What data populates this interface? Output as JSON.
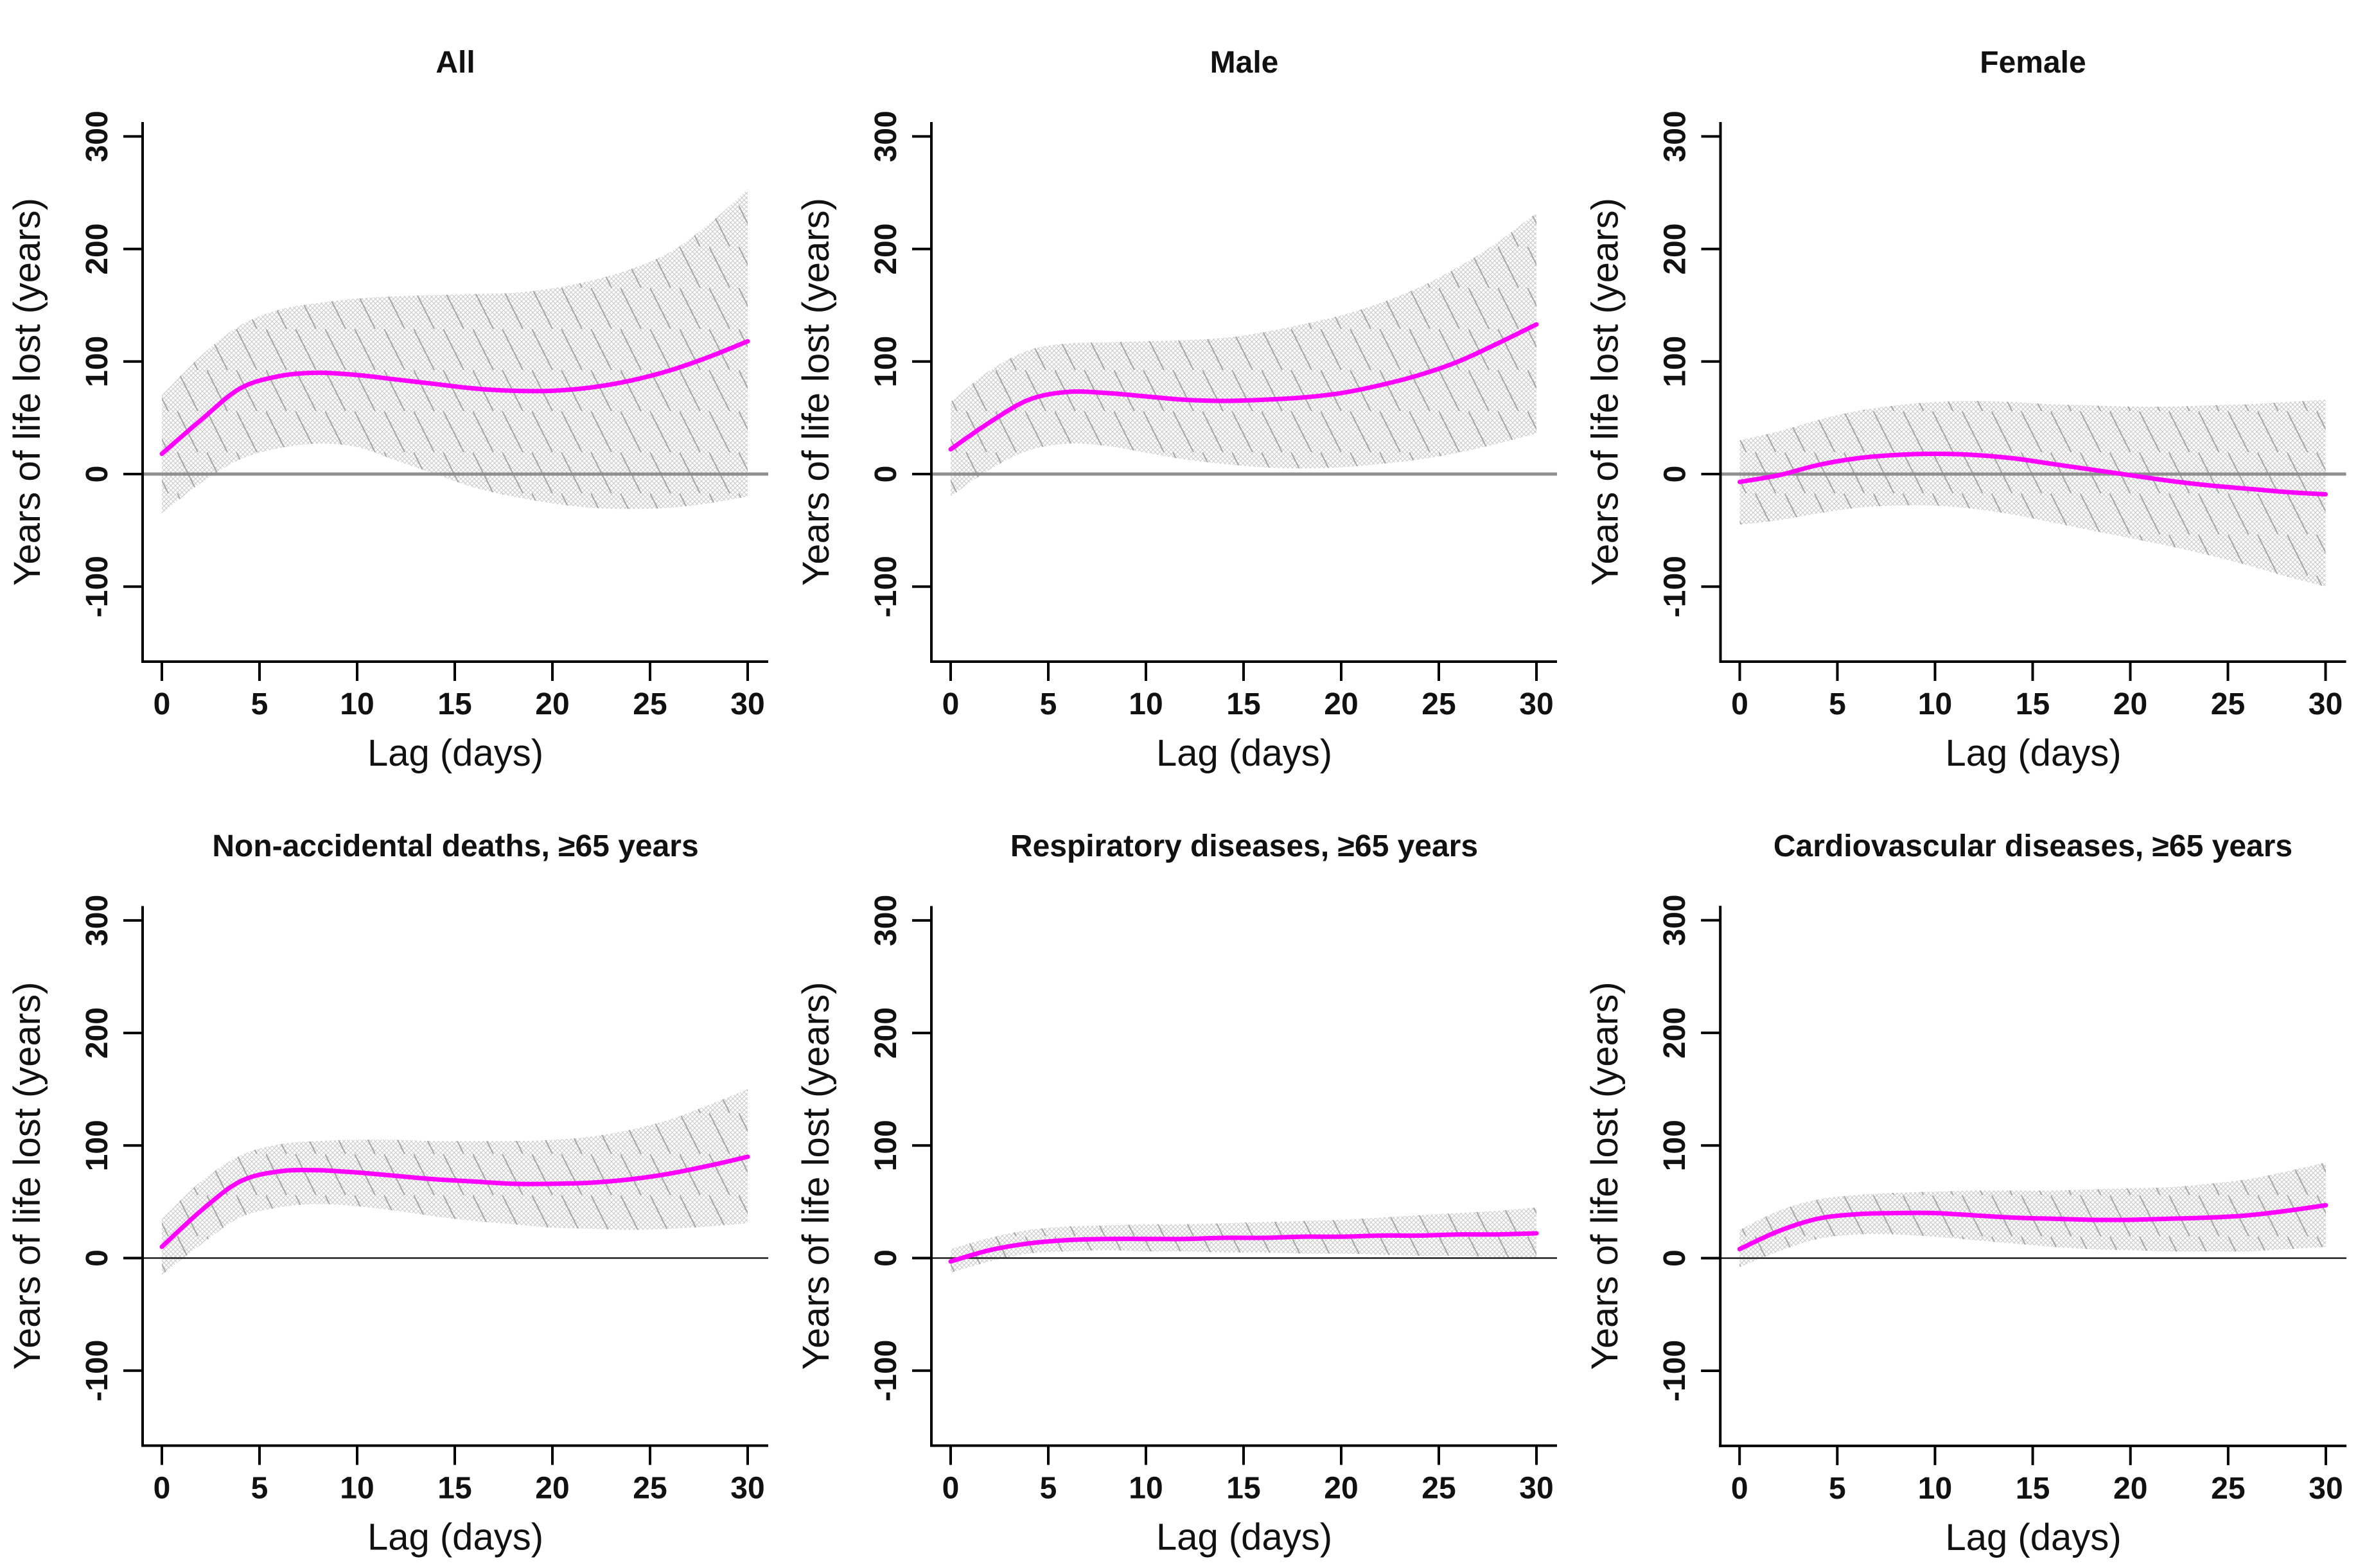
{
  "figure": {
    "kind": "lag-response small multiples",
    "rows": 2,
    "cols": 3,
    "background": "#ffffff",
    "axis_color": "#000000",
    "tick_label_color": "#111111"
  },
  "chart_data": [
    {
      "type": "line",
      "title": "All",
      "xlabel": "Lag (days)",
      "ylabel": "Years of life lost (years)",
      "x": [
        0,
        2,
        4,
        6,
        8,
        10,
        12,
        14,
        16,
        18,
        20,
        22,
        24,
        26,
        28,
        30
      ],
      "line": [
        18,
        48,
        76,
        87,
        90,
        88,
        84,
        80,
        76,
        74,
        74,
        77,
        83,
        92,
        104,
        118
      ],
      "band_high": [
        70,
        105,
        132,
        146,
        152,
        156,
        158,
        159,
        160,
        161,
        165,
        172,
        182,
        197,
        222,
        253
      ],
      "band_low": [
        -35,
        -8,
        13,
        23,
        27,
        24,
        12,
        0,
        -12,
        -20,
        -26,
        -30,
        -31,
        -30,
        -26,
        -20
      ],
      "xticks": [
        0,
        5,
        10,
        15,
        20,
        25,
        30
      ],
      "yticks": [
        -100,
        0,
        100,
        200,
        300
      ],
      "xlim": [
        0,
        30
      ],
      "ylim": [
        -160,
        315
      ],
      "line_color": "#FF00FF",
      "band_hatch_color": "#c9c9c9",
      "band_streak_color": "#a6a6a6",
      "zero_line_color": "#8f8f8f",
      "zero_line_width": 5
    },
    {
      "type": "line",
      "title": "Male",
      "xlabel": "Lag (days)",
      "ylabel": "Years of life lost (years)",
      "x": [
        0,
        2,
        4,
        6,
        8,
        10,
        12,
        14,
        16,
        18,
        20,
        22,
        24,
        26,
        28,
        30
      ],
      "line": [
        22,
        46,
        66,
        73,
        72,
        69,
        66,
        65,
        66,
        68,
        72,
        79,
        88,
        100,
        116,
        133
      ],
      "band_high": [
        64,
        92,
        110,
        116,
        117,
        118,
        119,
        121,
        126,
        133,
        141,
        152,
        166,
        184,
        206,
        232
      ],
      "band_low": [
        -20,
        4,
        21,
        27,
        25,
        19,
        13,
        9,
        6,
        5,
        6,
        9,
        13,
        19,
        27,
        36
      ],
      "xticks": [
        0,
        5,
        10,
        15,
        20,
        25,
        30
      ],
      "yticks": [
        -100,
        0,
        100,
        200,
        300
      ],
      "xlim": [
        0,
        30
      ],
      "ylim": [
        -160,
        315
      ],
      "line_color": "#FF00FF",
      "band_hatch_color": "#c9c9c9",
      "band_streak_color": "#a6a6a6",
      "zero_line_color": "#8f8f8f",
      "zero_line_width": 5
    },
    {
      "type": "line",
      "title": "Female",
      "xlabel": "Lag (days)",
      "ylabel": "Years of life lost (years)",
      "x": [
        0,
        2,
        4,
        6,
        8,
        10,
        12,
        14,
        16,
        18,
        20,
        22,
        24,
        26,
        28,
        30
      ],
      "line": [
        -7,
        -1,
        8,
        14,
        17,
        18,
        17,
        14,
        9,
        4,
        -1,
        -6,
        -10,
        -13,
        -16,
        -18
      ],
      "band_high": [
        30,
        38,
        48,
        56,
        61,
        64,
        65,
        64,
        62,
        61,
        60,
        60,
        61,
        62,
        64,
        66
      ],
      "band_low": [
        -45,
        -41,
        -35,
        -30,
        -28,
        -28,
        -31,
        -36,
        -43,
        -50,
        -57,
        -64,
        -72,
        -81,
        -91,
        -100
      ],
      "xticks": [
        0,
        5,
        10,
        15,
        20,
        25,
        30
      ],
      "yticks": [
        -100,
        0,
        100,
        200,
        300
      ],
      "xlim": [
        0,
        30
      ],
      "ylim": [
        -160,
        315
      ],
      "line_color": "#FF00FF",
      "band_hatch_color": "#c9c9c9",
      "band_streak_color": "#a6a6a6",
      "zero_line_color": "#8f8f8f",
      "zero_line_width": 5
    },
    {
      "type": "line",
      "title": "Non-accidental deaths, ≥65 years",
      "xlabel": "Lag (days)",
      "ylabel": "Years of life lost (years)",
      "x": [
        0,
        2,
        4,
        6,
        8,
        10,
        12,
        14,
        16,
        18,
        20,
        22,
        24,
        26,
        28,
        30
      ],
      "line": [
        10,
        42,
        68,
        77,
        78,
        76,
        73,
        70,
        68,
        66,
        66,
        67,
        70,
        75,
        82,
        90
      ],
      "band_high": [
        35,
        68,
        91,
        101,
        104,
        105,
        105,
        104,
        104,
        104,
        105,
        108,
        114,
        123,
        136,
        150
      ],
      "band_low": [
        -15,
        12,
        36,
        45,
        48,
        46,
        42,
        37,
        33,
        30,
        27,
        26,
        25,
        26,
        28,
        31
      ],
      "xticks": [
        0,
        5,
        10,
        15,
        20,
        25,
        30
      ],
      "yticks": [
        -100,
        0,
        100,
        200,
        300
      ],
      "xlim": [
        0,
        30
      ],
      "ylim": [
        -160,
        315
      ],
      "line_color": "#FF00FF",
      "band_hatch_color": "#c9c9c9",
      "band_streak_color": "#a6a6a6",
      "zero_line_color": "#1f1f1f",
      "zero_line_width": 2.5
    },
    {
      "type": "line",
      "title": "Respiratory diseases, ≥65 years",
      "xlabel": "Lag (days)",
      "ylabel": "Years of life lost (years)",
      "x": [
        0,
        2,
        4,
        6,
        8,
        10,
        12,
        14,
        16,
        18,
        20,
        22,
        24,
        26,
        28,
        30
      ],
      "line": [
        -3,
        7,
        13,
        16,
        17,
        17,
        17,
        18,
        18,
        19,
        19,
        20,
        20,
        21,
        21,
        22
      ],
      "band_high": [
        8,
        18,
        25,
        28,
        29,
        30,
        30,
        31,
        32,
        33,
        34,
        36,
        38,
        40,
        42,
        45
      ],
      "band_low": [
        -13,
        -3,
        4,
        6,
        7,
        6,
        6,
        5,
        5,
        4,
        4,
        3,
        2,
        2,
        1,
        0
      ],
      "xticks": [
        0,
        5,
        10,
        15,
        20,
        25,
        30
      ],
      "yticks": [
        -100,
        0,
        100,
        200,
        300
      ],
      "xlim": [
        0,
        30
      ],
      "ylim": [
        -160,
        315
      ],
      "line_color": "#FF00FF",
      "band_hatch_color": "#c9c9c9",
      "band_streak_color": "#a6a6a6",
      "zero_line_color": "#1f1f1f",
      "zero_line_width": 2.5
    },
    {
      "type": "line",
      "title": "Cardiovascular diseases, ≥65 years",
      "xlabel": "Lag (days)",
      "ylabel": "Years of life lost (years)",
      "x": [
        0,
        2,
        4,
        6,
        8,
        10,
        12,
        14,
        16,
        18,
        20,
        22,
        24,
        26,
        28,
        30
      ],
      "line": [
        8,
        24,
        35,
        39,
        40,
        40,
        38,
        36,
        35,
        34,
        34,
        35,
        36,
        38,
        42,
        47
      ],
      "band_high": [
        25,
        42,
        52,
        56,
        58,
        59,
        60,
        60,
        60,
        61,
        62,
        63,
        66,
        70,
        77,
        85
      ],
      "band_low": [
        -8,
        6,
        17,
        21,
        21,
        19,
        16,
        13,
        10,
        8,
        7,
        6,
        6,
        6,
        8,
        10
      ],
      "xticks": [
        0,
        5,
        10,
        15,
        20,
        25,
        30
      ],
      "yticks": [
        -100,
        0,
        100,
        200,
        300
      ],
      "xlim": [
        0,
        30
      ],
      "ylim": [
        -160,
        315
      ],
      "line_color": "#FF00FF",
      "band_hatch_color": "#c9c9c9",
      "band_streak_color": "#a6a6a6",
      "zero_line_color": "#1f1f1f",
      "zero_line_width": 2.5
    }
  ]
}
